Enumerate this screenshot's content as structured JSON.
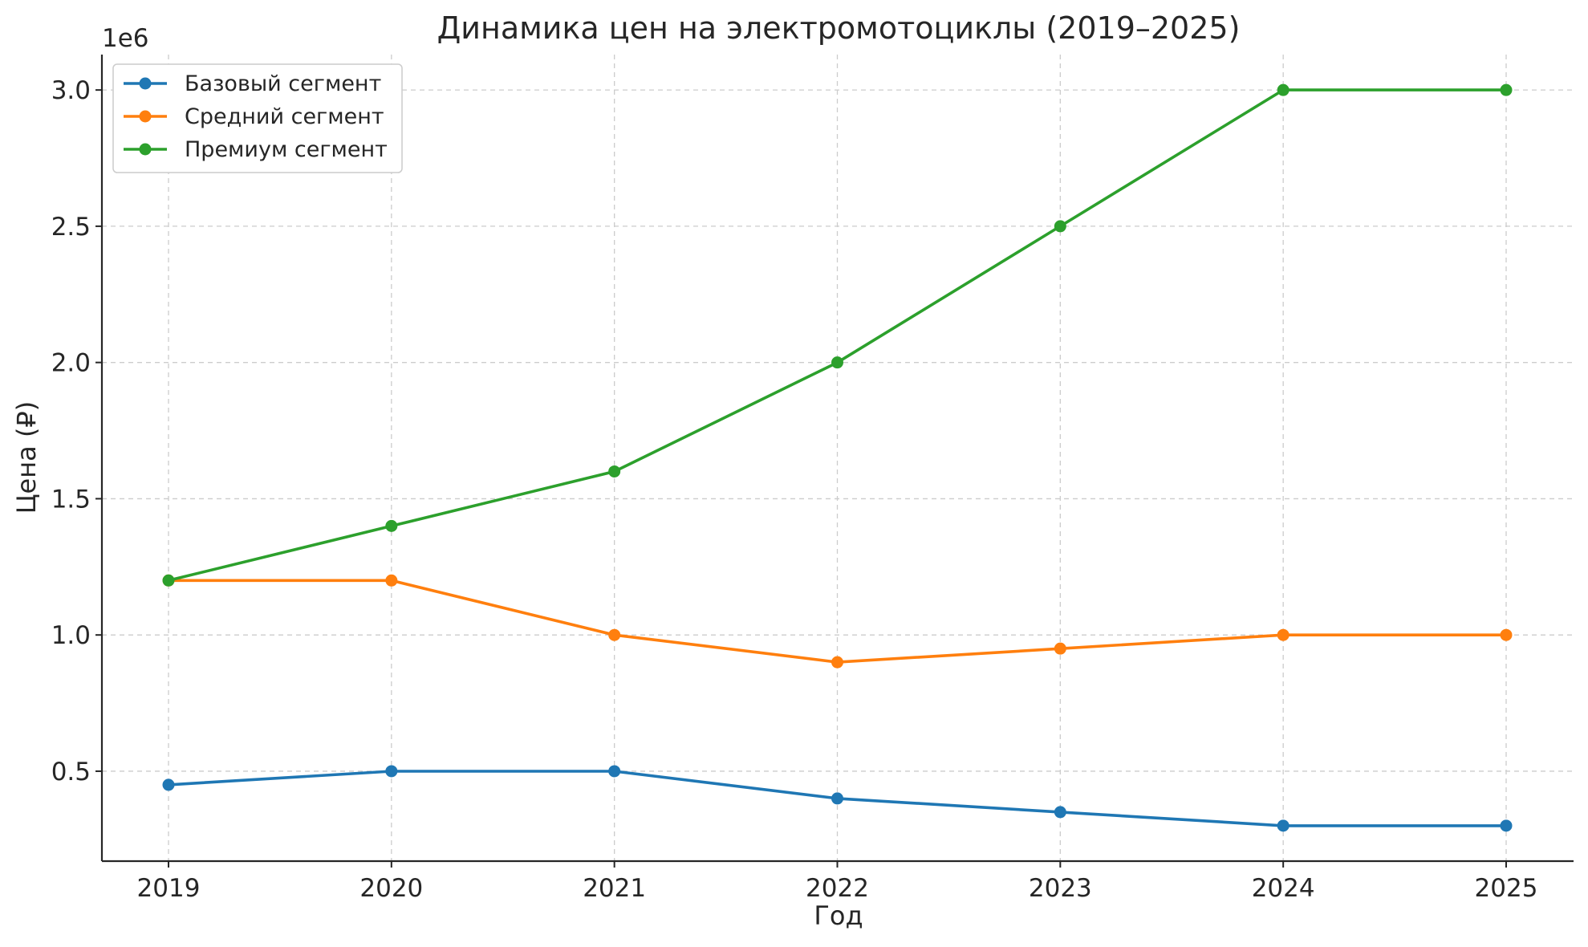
{
  "chart_data": {
    "type": "line",
    "title": "Динамика цен на электромотоциклы (2019–2025)",
    "xlabel": "Год",
    "ylabel": "Цена (₽)",
    "y_offset_label": "1e6",
    "categories": [
      "2019",
      "2020",
      "2021",
      "2022",
      "2023",
      "2024",
      "2025"
    ],
    "ylim": [
      170000,
      3130000
    ],
    "yticks": [
      500000,
      1000000,
      1500000,
      2000000,
      2500000,
      3000000
    ],
    "ytick_labels": [
      "0.5",
      "1.0",
      "1.5",
      "2.0",
      "2.5",
      "3.0"
    ],
    "grid": true,
    "legend_position": "top-left",
    "series": [
      {
        "name": "Базовый сегмент",
        "color": "#1f77b4",
        "values": [
          450000,
          500000,
          500000,
          400000,
          350000,
          300000,
          300000
        ]
      },
      {
        "name": "Средний сегмент",
        "color": "#ff7f0e",
        "values": [
          1200000,
          1200000,
          1000000,
          900000,
          950000,
          1000000,
          1000000
        ]
      },
      {
        "name": "Премиум сегмент",
        "color": "#2ca02c",
        "values": [
          1200000,
          1400000,
          1600000,
          2000000,
          2500000,
          3000000,
          3000000
        ]
      }
    ]
  }
}
